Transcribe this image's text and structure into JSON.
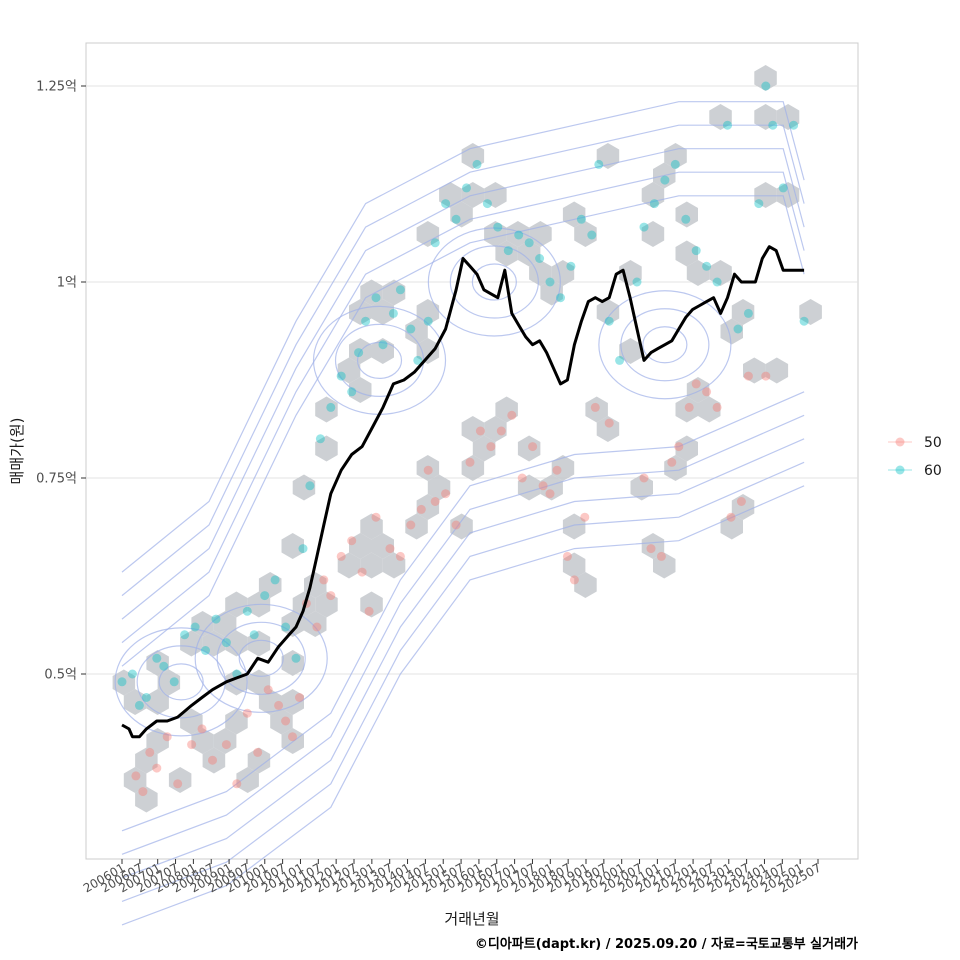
{
  "chart_data": {
    "type": "scatter",
    "title": "",
    "xlabel": "거래년월",
    "ylabel": "매매가(원)",
    "caption": "©디아파트(dapt.kr) / 2025.09.20 / 자료=국토교통부 실거래가",
    "x_range": [
      2006.0,
      2026.0
    ],
    "ylim": [
      0.25,
      1.3
    ],
    "y_ticks": [
      {
        "value": 0.5,
        "label": "0.5억"
      },
      {
        "value": 0.75,
        "label": "0.75억"
      },
      {
        "value": 1.0,
        "label": "1억"
      },
      {
        "value": 1.25,
        "label": "1.25억"
      }
    ],
    "x_tick_labels": [
      "200601",
      "200607",
      "200701",
      "200707",
      "200801",
      "200807",
      "200901",
      "200907",
      "201001",
      "201007",
      "201101",
      "201107",
      "201201",
      "201207",
      "201301",
      "201307",
      "201401",
      "201407",
      "201501",
      "201507",
      "201601",
      "201607",
      "201701",
      "201707",
      "201801",
      "201807",
      "201901",
      "201907",
      "202001",
      "202007",
      "202101",
      "202107",
      "202201",
      "202207",
      "202301",
      "202307",
      "202401",
      "202407",
      "202501",
      "202507"
    ],
    "legend": [
      {
        "label": "50",
        "color": "#F8766D"
      },
      {
        "label": "60",
        "color": "#00BFC4"
      }
    ],
    "colors": {
      "hex": "#c4c8cc",
      "contour": "#9fb0e8",
      "trend": "#000000",
      "grid": "#e3e3e3"
    },
    "trend_line": {
      "name": "moving average price",
      "points": [
        [
          2006.0,
          0.435
        ],
        [
          2006.2,
          0.43
        ],
        [
          2006.3,
          0.42
        ],
        [
          2006.5,
          0.42
        ],
        [
          2006.7,
          0.43
        ],
        [
          2007.0,
          0.44
        ],
        [
          2007.3,
          0.44
        ],
        [
          2007.6,
          0.445
        ],
        [
          2008.0,
          0.46
        ],
        [
          2008.3,
          0.47
        ],
        [
          2008.6,
          0.48
        ],
        [
          2009.0,
          0.49
        ],
        [
          2009.3,
          0.495
        ],
        [
          2009.6,
          0.5
        ],
        [
          2009.9,
          0.52
        ],
        [
          2010.2,
          0.515
        ],
        [
          2010.5,
          0.535
        ],
        [
          2010.8,
          0.55
        ],
        [
          2011.0,
          0.56
        ],
        [
          2011.2,
          0.58
        ],
        [
          2011.4,
          0.61
        ],
        [
          2011.6,
          0.65
        ],
        [
          2011.8,
          0.69
        ],
        [
          2012.0,
          0.73
        ],
        [
          2012.3,
          0.76
        ],
        [
          2012.6,
          0.78
        ],
        [
          2012.9,
          0.79
        ],
        [
          2013.2,
          0.815
        ],
        [
          2013.5,
          0.84
        ],
        [
          2013.8,
          0.87
        ],
        [
          2014.1,
          0.875
        ],
        [
          2014.4,
          0.885
        ],
        [
          2014.7,
          0.9
        ],
        [
          2015.0,
          0.915
        ],
        [
          2015.3,
          0.94
        ],
        [
          2015.6,
          0.99
        ],
        [
          2015.8,
          1.03
        ],
        [
          2016.0,
          1.02
        ],
        [
          2016.2,
          1.01
        ],
        [
          2016.4,
          0.99
        ],
        [
          2016.6,
          0.985
        ],
        [
          2016.8,
          0.98
        ],
        [
          2017.0,
          1.015
        ],
        [
          2017.2,
          0.96
        ],
        [
          2017.4,
          0.945
        ],
        [
          2017.6,
          0.93
        ],
        [
          2017.8,
          0.92
        ],
        [
          2018.0,
          0.925
        ],
        [
          2018.2,
          0.91
        ],
        [
          2018.4,
          0.89
        ],
        [
          2018.6,
          0.87
        ],
        [
          2018.8,
          0.875
        ],
        [
          2019.0,
          0.92
        ],
        [
          2019.2,
          0.95
        ],
        [
          2019.4,
          0.975
        ],
        [
          2019.6,
          0.98
        ],
        [
          2019.8,
          0.975
        ],
        [
          2020.0,
          0.98
        ],
        [
          2020.2,
          1.01
        ],
        [
          2020.4,
          1.015
        ],
        [
          2020.6,
          0.98
        ],
        [
          2020.8,
          0.94
        ],
        [
          2021.0,
          0.9
        ],
        [
          2021.2,
          0.91
        ],
        [
          2021.4,
          0.915
        ],
        [
          2021.6,
          0.92
        ],
        [
          2021.8,
          0.925
        ],
        [
          2022.0,
          0.94
        ],
        [
          2022.2,
          0.955
        ],
        [
          2022.4,
          0.965
        ],
        [
          2022.6,
          0.97
        ],
        [
          2022.8,
          0.975
        ],
        [
          2023.0,
          0.98
        ],
        [
          2023.2,
          0.96
        ],
        [
          2023.4,
          0.98
        ],
        [
          2023.6,
          1.01
        ],
        [
          2023.8,
          1.0
        ],
        [
          2024.0,
          1.0
        ],
        [
          2024.2,
          1.0
        ],
        [
          2024.4,
          1.03
        ],
        [
          2024.6,
          1.045
        ],
        [
          2024.8,
          1.04
        ],
        [
          2025.0,
          1.015
        ],
        [
          2025.3,
          1.015
        ],
        [
          2025.6,
          1.015
        ]
      ]
    },
    "series": [
      {
        "name": "50",
        "points": [
          [
            2006.4,
            0.37
          ],
          [
            2006.6,
            0.35
          ],
          [
            2006.8,
            0.4
          ],
          [
            2007.0,
            0.38
          ],
          [
            2007.3,
            0.42
          ],
          [
            2007.6,
            0.36
          ],
          [
            2008.0,
            0.41
          ],
          [
            2008.3,
            0.43
          ],
          [
            2008.6,
            0.39
          ],
          [
            2009.0,
            0.41
          ],
          [
            2009.3,
            0.36
          ],
          [
            2009.6,
            0.45
          ],
          [
            2009.9,
            0.4
          ],
          [
            2010.2,
            0.48
          ],
          [
            2010.5,
            0.46
          ],
          [
            2010.7,
            0.44
          ],
          [
            2010.9,
            0.42
          ],
          [
            2011.1,
            0.47
          ],
          [
            2011.3,
            0.59
          ],
          [
            2011.6,
            0.56
          ],
          [
            2011.8,
            0.62
          ],
          [
            2012.0,
            0.6
          ],
          [
            2012.3,
            0.65
          ],
          [
            2012.6,
            0.67
          ],
          [
            2012.9,
            0.63
          ],
          [
            2013.1,
            0.58
          ],
          [
            2013.3,
            0.7
          ],
          [
            2013.7,
            0.66
          ],
          [
            2014.0,
            0.65
          ],
          [
            2014.3,
            0.69
          ],
          [
            2014.6,
            0.71
          ],
          [
            2014.8,
            0.76
          ],
          [
            2015.0,
            0.72
          ],
          [
            2015.3,
            0.73
          ],
          [
            2015.6,
            0.69
          ],
          [
            2016.0,
            0.77
          ],
          [
            2016.3,
            0.81
          ],
          [
            2016.6,
            0.79
          ],
          [
            2016.9,
            0.81
          ],
          [
            2017.2,
            0.83
          ],
          [
            2017.5,
            0.75
          ],
          [
            2017.8,
            0.79
          ],
          [
            2018.1,
            0.74
          ],
          [
            2018.3,
            0.73
          ],
          [
            2018.5,
            0.76
          ],
          [
            2018.8,
            0.65
          ],
          [
            2019.0,
            0.62
          ],
          [
            2019.3,
            0.7
          ],
          [
            2019.6,
            0.84
          ],
          [
            2020.0,
            0.82
          ],
          [
            2021.0,
            0.75
          ],
          [
            2021.2,
            0.66
          ],
          [
            2021.5,
            0.65
          ],
          [
            2021.8,
            0.77
          ],
          [
            2022.0,
            0.79
          ],
          [
            2022.3,
            0.84
          ],
          [
            2022.5,
            0.87
          ],
          [
            2022.8,
            0.86
          ],
          [
            2023.1,
            0.84
          ],
          [
            2023.5,
            0.7
          ],
          [
            2023.8,
            0.72
          ],
          [
            2024.0,
            0.88
          ],
          [
            2024.5,
            0.88
          ]
        ]
      },
      {
        "name": "60",
        "points": [
          [
            2006.0,
            0.49
          ],
          [
            2006.3,
            0.5
          ],
          [
            2006.5,
            0.46
          ],
          [
            2006.7,
            0.47
          ],
          [
            2007.0,
            0.52
          ],
          [
            2007.2,
            0.51
          ],
          [
            2007.5,
            0.49
          ],
          [
            2007.8,
            0.55
          ],
          [
            2008.1,
            0.56
          ],
          [
            2008.4,
            0.53
          ],
          [
            2008.7,
            0.57
          ],
          [
            2009.0,
            0.54
          ],
          [
            2009.3,
            0.5
          ],
          [
            2009.6,
            0.58
          ],
          [
            2009.8,
            0.55
          ],
          [
            2010.1,
            0.6
          ],
          [
            2010.4,
            0.62
          ],
          [
            2010.7,
            0.56
          ],
          [
            2011.0,
            0.52
          ],
          [
            2011.2,
            0.66
          ],
          [
            2011.4,
            0.74
          ],
          [
            2011.7,
            0.8
          ],
          [
            2012.0,
            0.84
          ],
          [
            2012.3,
            0.88
          ],
          [
            2012.6,
            0.86
          ],
          [
            2012.8,
            0.91
          ],
          [
            2013.0,
            0.95
          ],
          [
            2013.3,
            0.98
          ],
          [
            2013.5,
            0.92
          ],
          [
            2013.8,
            0.96
          ],
          [
            2014.0,
            0.99
          ],
          [
            2014.3,
            0.94
          ],
          [
            2014.5,
            0.9
          ],
          [
            2014.8,
            0.95
          ],
          [
            2015.0,
            1.05
          ],
          [
            2015.3,
            1.1
          ],
          [
            2015.6,
            1.08
          ],
          [
            2015.9,
            1.12
          ],
          [
            2016.2,
            1.15
          ],
          [
            2016.5,
            1.1
          ],
          [
            2016.8,
            1.07
          ],
          [
            2017.1,
            1.04
          ],
          [
            2017.4,
            1.06
          ],
          [
            2017.7,
            1.05
          ],
          [
            2018.0,
            1.03
          ],
          [
            2018.3,
            1.0
          ],
          [
            2018.6,
            0.98
          ],
          [
            2018.9,
            1.02
          ],
          [
            2019.2,
            1.08
          ],
          [
            2019.5,
            1.06
          ],
          [
            2019.7,
            1.15
          ],
          [
            2020.0,
            0.95
          ],
          [
            2020.3,
            0.9
          ],
          [
            2020.8,
            1.0
          ],
          [
            2021.0,
            1.07
          ],
          [
            2021.3,
            1.1
          ],
          [
            2021.6,
            1.13
          ],
          [
            2021.9,
            1.15
          ],
          [
            2022.2,
            1.08
          ],
          [
            2022.5,
            1.04
          ],
          [
            2022.8,
            1.02
          ],
          [
            2023.1,
            1.0
          ],
          [
            2023.4,
            1.2
          ],
          [
            2023.7,
            0.94
          ],
          [
            2024.0,
            0.96
          ],
          [
            2024.3,
            1.1
          ],
          [
            2024.5,
            1.25
          ],
          [
            2024.7,
            1.2
          ],
          [
            2025.0,
            1.12
          ],
          [
            2025.3,
            1.2
          ],
          [
            2025.6,
            0.95
          ]
        ]
      }
    ]
  }
}
